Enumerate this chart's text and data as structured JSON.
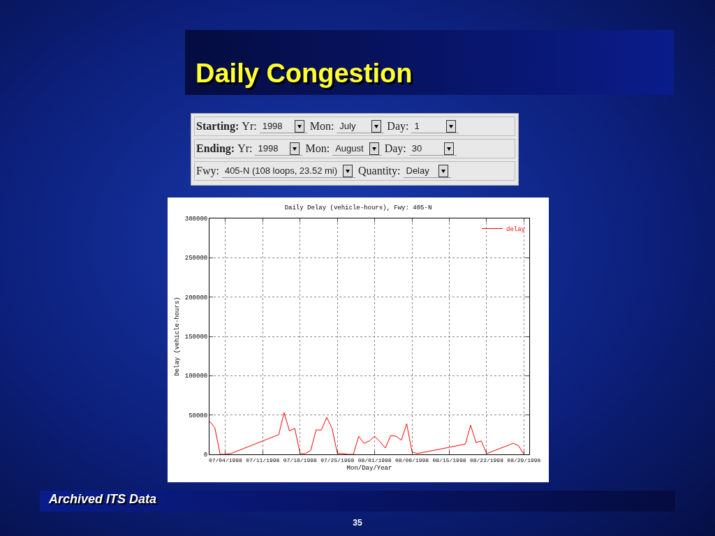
{
  "chart_data": {
    "type": "line",
    "title": "Daily Delay (vehicle-hours), Fwy: 405-N",
    "xlabel": "Mon/Day/Year",
    "ylabel": "Delay (vehicle-hours)",
    "annotations": [
      "Daily Congestion",
      "Starting:",
      "Yr:",
      "1998",
      "Mon:",
      "July",
      "Day:",
      "1",
      "Ending:",
      "Yr:",
      "1998",
      "Mon:",
      "August",
      "Day:",
      "30",
      "Fwy:",
      "405-N (108 loops, 23.52 mi)",
      "Quantity:",
      "Delay",
      "Archived ITS Data",
      "35"
    ],
    "x": [
      "1998-07-01",
      "1998-07-02",
      "1998-07-03",
      "1998-07-04",
      "1998-07-05",
      "1998-07-14",
      "1998-07-15",
      "1998-07-16",
      "1998-07-17",
      "1998-07-18",
      "1998-07-19",
      "1998-07-20",
      "1998-07-21",
      "1998-07-22",
      "1998-07-23",
      "1998-07-24",
      "1998-07-25",
      "1998-07-26",
      "1998-07-27",
      "1998-07-28",
      "1998-07-29",
      "1998-07-30",
      "1998-07-31",
      "1998-08-01",
      "1998-08-02",
      "1998-08-03",
      "1998-08-04",
      "1998-08-05",
      "1998-08-06",
      "1998-08-07",
      "1998-08-08",
      "1998-08-09",
      "1998-08-18",
      "1998-08-19",
      "1998-08-20",
      "1998-08-21",
      "1998-08-22",
      "1998-08-27",
      "1998-08-28",
      "1998-08-29"
    ],
    "series": [
      {
        "name": "delay",
        "color": "#ff0000",
        "values": [
          42000,
          34000,
          0,
          0,
          1000,
          25000,
          53000,
          30000,
          33000,
          1000,
          1000,
          5000,
          31000,
          31000,
          47000,
          33000,
          1000,
          1000,
          0,
          0,
          23000,
          14000,
          17000,
          23000,
          16000,
          8000,
          24000,
          23000,
          18000,
          39000,
          3000,
          1000,
          13000,
          37000,
          15000,
          17000,
          1000,
          14000,
          11000,
          0
        ]
      }
    ],
    "xlim": [
      "1998-07-01",
      "1998-08-30"
    ],
    "xticks": [
      {
        "value": "1998-07-04",
        "label": "07/04/1998"
      },
      {
        "value": "1998-07-11",
        "label": "07/11/1998"
      },
      {
        "value": "1998-07-18",
        "label": "07/18/1998"
      },
      {
        "value": "1998-07-25",
        "label": "07/25/1998"
      },
      {
        "value": "1998-08-01",
        "label": "08/01/1998"
      },
      {
        "value": "1998-08-08",
        "label": "08/08/1998"
      },
      {
        "value": "1998-08-15",
        "label": "08/15/1998"
      },
      {
        "value": "1998-08-22",
        "label": "08/22/1998"
      },
      {
        "value": "1998-08-29",
        "label": "08/29/1998"
      }
    ],
    "ylim": [
      0,
      300000
    ],
    "yticks": [
      0,
      50000,
      100000,
      150000,
      200000,
      250000,
      300000
    ],
    "grid": true,
    "legend": "top right",
    "marker": "none",
    "line_style": "solid"
  }
}
